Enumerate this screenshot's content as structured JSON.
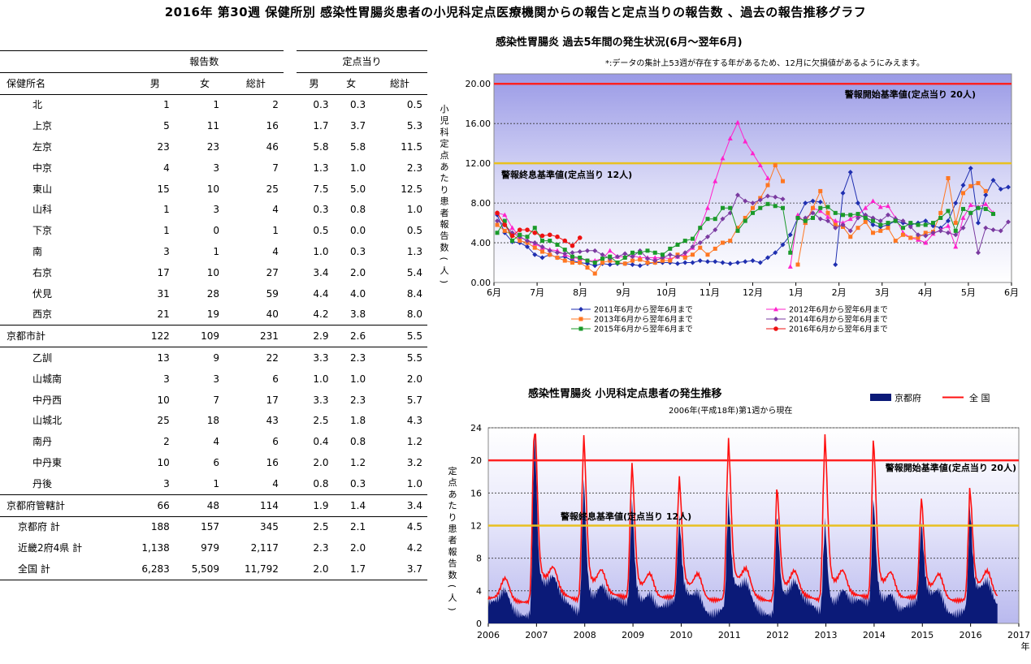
{
  "page": {
    "title": "2016年 第30週 保健所別 感染性胃腸炎患者の小児科定点医療機関からの報告と定点当りの報告数 、過去の報告推移グラフ"
  },
  "table": {
    "group_headers": [
      "報告数",
      "定点当り"
    ],
    "columns": [
      "保健所名",
      "男",
      "女",
      "総計",
      "男",
      "女",
      "総計"
    ],
    "rows": [
      {
        "name": "北",
        "vals": [
          "1",
          "1",
          "2",
          "0.3",
          "0.3",
          "0.5"
        ],
        "style": "normal"
      },
      {
        "name": "上京",
        "vals": [
          "5",
          "11",
          "16",
          "1.7",
          "3.7",
          "5.3"
        ],
        "style": "normal"
      },
      {
        "name": "左京",
        "vals": [
          "23",
          "23",
          "46",
          "5.8",
          "5.8",
          "11.5"
        ],
        "style": "normal"
      },
      {
        "name": "中京",
        "vals": [
          "4",
          "3",
          "7",
          "1.3",
          "1.0",
          "2.3"
        ],
        "style": "normal"
      },
      {
        "name": "東山",
        "vals": [
          "15",
          "10",
          "25",
          "7.5",
          "5.0",
          "12.5"
        ],
        "style": "normal"
      },
      {
        "name": "山科",
        "vals": [
          "1",
          "3",
          "4",
          "0.3",
          "0.8",
          "1.0"
        ],
        "style": "normal"
      },
      {
        "name": "下京",
        "vals": [
          "1",
          "0",
          "1",
          "0.5",
          "0.0",
          "0.5"
        ],
        "style": "normal"
      },
      {
        "name": "南",
        "vals": [
          "3",
          "1",
          "4",
          "1.0",
          "0.3",
          "1.3"
        ],
        "style": "normal"
      },
      {
        "name": "右京",
        "vals": [
          "17",
          "10",
          "27",
          "3.4",
          "2.0",
          "5.4"
        ],
        "style": "normal"
      },
      {
        "name": "伏見",
        "vals": [
          "31",
          "28",
          "59",
          "4.4",
          "4.0",
          "8.4"
        ],
        "style": "normal"
      },
      {
        "name": "西京",
        "vals": [
          "21",
          "19",
          "40",
          "4.2",
          "3.8",
          "8.0"
        ],
        "style": "sepb"
      },
      {
        "name": "京都市計",
        "vals": [
          "122",
          "109",
          "231",
          "2.9",
          "2.6",
          "5.5"
        ],
        "style": "sub"
      },
      {
        "name": "乙訓",
        "vals": [
          "13",
          "9",
          "22",
          "3.3",
          "2.3",
          "5.5"
        ],
        "style": "sept"
      },
      {
        "name": "山城南",
        "vals": [
          "3",
          "3",
          "6",
          "1.0",
          "1.0",
          "2.0"
        ],
        "style": "normal"
      },
      {
        "name": "中丹西",
        "vals": [
          "10",
          "7",
          "17",
          "3.3",
          "2.3",
          "5.7"
        ],
        "style": "normal"
      },
      {
        "name": "山城北",
        "vals": [
          "25",
          "18",
          "43",
          "2.5",
          "1.8",
          "4.3"
        ],
        "style": "normal"
      },
      {
        "name": "南丹",
        "vals": [
          "2",
          "4",
          "6",
          "0.4",
          "0.8",
          "1.2"
        ],
        "style": "normal"
      },
      {
        "name": "中丹東",
        "vals": [
          "10",
          "6",
          "16",
          "2.0",
          "1.2",
          "3.2"
        ],
        "style": "normal"
      },
      {
        "name": "丹後",
        "vals": [
          "3",
          "1",
          "4",
          "0.8",
          "0.3",
          "1.0"
        ],
        "style": "sepb"
      },
      {
        "name": "京都府管轄計",
        "vals": [
          "66",
          "48",
          "114",
          "1.9",
          "1.4",
          "3.4"
        ],
        "style": "sub"
      },
      {
        "name": "京都府 計",
        "vals": [
          "188",
          "157",
          "345",
          "2.5",
          "2.1",
          "4.5"
        ],
        "style": "tot_top"
      },
      {
        "name": "近畿2府4県 計",
        "vals": [
          "1,138",
          "979",
          "2,117",
          "2.3",
          "2.0",
          "4.2"
        ],
        "style": "tot"
      },
      {
        "name": "全国 計",
        "vals": [
          "6,283",
          "5,509",
          "11,792",
          "2.0",
          "1.7",
          "3.7"
        ],
        "style": "tot_last"
      }
    ]
  },
  "chart_data": [
    {
      "type": "line",
      "title": "感染性胃腸炎 過去5年間の発生状況(6月～翌年6月)",
      "note": "*:データの集計上53週が存在する年があるため、12月に欠損値があるようにみえます。",
      "ylabel": "小児科定点あたり患者報告数(人)",
      "ylim": [
        0,
        21
      ],
      "yticks": [
        "0.00",
        "4.00",
        "8.00",
        "12.00",
        "16.00",
        "20.00"
      ],
      "months": [
        "6月",
        "7月",
        "8月",
        "9月",
        "10月",
        "11月",
        "12月",
        "1月",
        "2月",
        "3月",
        "4月",
        "5月",
        "6月"
      ],
      "thresholds": [
        {
          "value": 20,
          "label": "警報開始基準値(定点当り 20人)",
          "color": "#ff2222"
        },
        {
          "value": 12,
          "label": "警報終息基準値(定点当り 12人)",
          "color": "#e8c020"
        }
      ],
      "series": [
        {
          "name": "2011年6月から翌年6月まで",
          "color": "#1f2fb0",
          "marker": "diamond",
          "values": [
            6.8,
            5.0,
            4.1,
            4.0,
            3.6,
            2.8,
            2.5,
            2.8,
            2.5,
            2.6,
            2.2,
            2.0,
            1.9,
            1.7,
            1.9,
            1.8,
            1.9,
            1.9,
            1.8,
            1.7,
            1.9,
            2.0,
            2.0,
            2.0,
            1.9,
            2.0,
            2.0,
            2.2,
            2.1,
            2.1,
            2.0,
            1.9,
            2.0,
            2.1,
            2.2,
            2.0,
            2.5,
            3.0,
            3.8,
            4.8,
            6.5,
            8.0,
            8.2,
            8.1,
            null,
            1.8,
            9.0,
            11.1,
            8.0,
            6.5,
            5.8,
            5.6,
            5.8,
            6.2,
            6.0,
            5.8,
            6.0,
            6.2,
            5.7,
            5.5,
            6.2,
            8.0,
            9.8,
            11.5,
            6.0,
            8.8,
            10.3,
            9.4,
            9.6
          ]
        },
        {
          "name": "2012年6月から翌年6月まで",
          "color": "#ff22cc",
          "marker": "triangle",
          "values": [
            7.0,
            6.8,
            5.5,
            4.6,
            4.2,
            3.9,
            3.5,
            3.3,
            3.2,
            2.8,
            2.5,
            2.4,
            2.2,
            2.2,
            2.4,
            3.2,
            2.6,
            2.6,
            2.7,
            2.5,
            2.5,
            2.5,
            2.5,
            2.4,
            2.6,
            2.8,
            3.5,
            5.5,
            7.5,
            10.2,
            12.5,
            14.5,
            16.1,
            14.2,
            13.0,
            11.8,
            10.5,
            null,
            null,
            1.6,
            6.8,
            6.0,
            7.5,
            7.2,
            6.6,
            6.2,
            6.0,
            6.4,
            6.8,
            7.5,
            8.2,
            7.6,
            7.7,
            6.5,
            5.0,
            4.5,
            4.3,
            4.0,
            4.9,
            5.3,
            5.7,
            3.6,
            6.5,
            7.8,
            7.6,
            7.9,
            7.0
          ]
        },
        {
          "name": "2013年6月から翌年6月まで",
          "color": "#ff7722",
          "marker": "square",
          "values": [
            5.8,
            5.2,
            4.8,
            4.2,
            4.0,
            3.5,
            3.1,
            2.8,
            2.5,
            2.2,
            2.0,
            2.0,
            1.5,
            0.9,
            2.0,
            2.2,
            2.0,
            1.9,
            2.2,
            2.3,
            2.0,
            2.0,
            2.2,
            2.2,
            2.8,
            2.5,
            2.8,
            3.5,
            2.8,
            3.4,
            4.0,
            4.2,
            5.5,
            6.5,
            7.5,
            8.5,
            9.8,
            11.8,
            10.2,
            null,
            1.8,
            6.0,
            7.5,
            9.2,
            7.0,
            5.8,
            5.6,
            4.6,
            5.5,
            6.1,
            5.0,
            5.2,
            5.5,
            4.2,
            4.8,
            4.5,
            4.5,
            5.0,
            5.1,
            7.0,
            10.5,
            6.0,
            9.0,
            9.7,
            10.0,
            9.2
          ]
        },
        {
          "name": "2014年6月から翌年6月まで",
          "color": "#7a3aa0",
          "marker": "diamond",
          "values": [
            6.2,
            5.8,
            5.0,
            4.6,
            4.2,
            4.0,
            3.6,
            3.2,
            3.0,
            2.9,
            3.0,
            3.1,
            3.2,
            3.2,
            2.8,
            2.4,
            2.6,
            2.9,
            2.6,
            3.2,
            2.4,
            2.2,
            2.5,
            2.8,
            2.6,
            3.0,
            3.6,
            4.0,
            4.6,
            5.3,
            6.4,
            7.0,
            8.8,
            8.2,
            8.0,
            8.3,
            8.7,
            8.6,
            8.4,
            null,
            null,
            6.5,
            7.0,
            6.4,
            6.2,
            5.5,
            5.8,
            5.2,
            6.5,
            6.8,
            6.5,
            6.2,
            6.8,
            6.4,
            6.2,
            5.6,
            4.8,
            4.7,
            5.0,
            5.2,
            5.0,
            4.8,
            5.5,
            7.0,
            3.0,
            5.5,
            5.3,
            5.2,
            6.1
          ]
        },
        {
          "name": "2015年6月から翌年6月まで",
          "color": "#1a9a2a",
          "marker": "square",
          "values": [
            5.0,
            6.2,
            4.2,
            4.8,
            4.6,
            5.5,
            4.2,
            4.2,
            3.8,
            3.3,
            2.6,
            2.5,
            2.2,
            2.0,
            2.4,
            2.6,
            2.0,
            2.5,
            3.0,
            3.0,
            3.2,
            3.0,
            2.8,
            3.4,
            3.8,
            4.2,
            4.4,
            5.5,
            6.4,
            6.4,
            7.5,
            7.5,
            5.2,
            6.2,
            7.0,
            7.5,
            7.9,
            7.7,
            7.5,
            3.0,
            6.5,
            6.2,
            6.5,
            7.5,
            7.6,
            7.0,
            6.8,
            6.8,
            6.9,
            6.5,
            6.2,
            5.8,
            6.0,
            6.2,
            5.5,
            6.0,
            5.8,
            5.8,
            6.0,
            6.5,
            7.2,
            5.2,
            7.4,
            7.0,
            7.5,
            7.4,
            6.9
          ]
        },
        {
          "name": "2016年6月から翌年6月まで",
          "color": "#ee1111",
          "marker": "circle",
          "values": [
            7.0,
            5.8,
            4.7,
            5.3,
            5.3,
            5.0,
            4.7,
            4.8,
            4.6,
            4.2,
            3.7,
            4.5
          ]
        }
      ],
      "legend_position": "bottom"
    },
    {
      "type": "area",
      "title": "感染性胃腸炎 小児科定点患者の発生推移",
      "subtitle": "2006年(平成18年)第1週から現在",
      "ylabel": "定点あたり患者報告数(人)",
      "xlabel": "年",
      "ylim": [
        0,
        24
      ],
      "yticks": [
        "0",
        "4",
        "8",
        "12",
        "16",
        "20",
        "24"
      ],
      "years": [
        "2006",
        "2007",
        "2008",
        "2009",
        "2010",
        "2011",
        "2012",
        "2013",
        "2014",
        "2015",
        "2016",
        "2017"
      ],
      "thresholds": [
        {
          "value": 20,
          "label": "警報開始基準値(定点当り 20人)",
          "color": "#ff2222"
        },
        {
          "value": 12,
          "label": "警報終息基準値(定点当り 12人)",
          "color": "#e8c020"
        }
      ],
      "season_peaks": [
        {
          "center": 2006.95,
          "kyoto": 23.0,
          "national": 22.5
        },
        {
          "center": 2007.97,
          "kyoto": 17.0,
          "national": 19.3
        },
        {
          "center": 2008.97,
          "kyoto": 13.5,
          "national": 15.8
        },
        {
          "center": 2009.95,
          "kyoto": 10.5,
          "national": 14.0
        },
        {
          "center": 2010.97,
          "kyoto": 13.5,
          "national": 18.5
        },
        {
          "center": 2011.98,
          "kyoto": 12.0,
          "national": 12.8
        },
        {
          "center": 2012.97,
          "kyoto": 11.8,
          "national": 19.5
        },
        {
          "center": 2013.98,
          "kyoto": 13.2,
          "national": 18.0
        },
        {
          "center": 2014.97,
          "kyoto": 10.0,
          "national": 11.5
        },
        {
          "center": 2015.98,
          "kyoto": 12.0,
          "national": 12.5
        }
      ],
      "series": [
        {
          "name": "京都府",
          "color": "#0b1a78"
        },
        {
          "name": "全 国",
          "color": "#ff1111"
        }
      ],
      "legend_position": "top-right"
    }
  ]
}
